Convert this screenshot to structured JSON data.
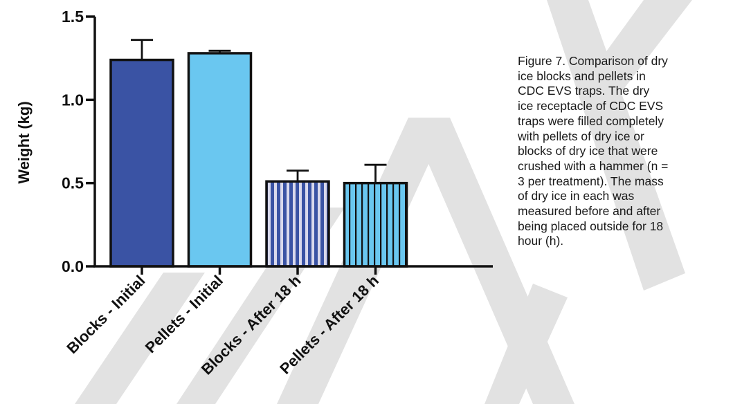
{
  "chart_data": {
    "type": "bar",
    "categories": [
      "Blocks - Initial",
      "Pellets - Initial",
      "Blocks - After 18 h",
      "Pellets - After 18 h"
    ],
    "values": [
      1.24,
      1.28,
      0.51,
      0.5
    ],
    "errors": [
      0.12,
      0.015,
      0.065,
      0.11
    ],
    "ylabel": "Weight (kg)",
    "xlabel": "",
    "ylim": [
      0,
      1.5
    ],
    "yticks": [
      "0.0",
      "0.5",
      "1.0",
      "1.5"
    ],
    "grid": false,
    "bar_fills": [
      "solid",
      "solid",
      "striped",
      "striped"
    ],
    "colors": [
      "#3a53a4",
      "#6ac7f0",
      "#3a53a4",
      "#6ac7f0"
    ]
  },
  "caption": "Figure 7.  Comparison of dry\nice blocks and pellets in\nCDC EVS traps.  The dry\nice receptacle of CDC EVS\ntraps were filled completely\nwith pellets of dry ice or\nblocks of dry ice that were\ncrushed with a hammer (n =\n3 per treatment).  The mass\nof dry ice in each was\nmeasured before and after\nbeing placed outside for 18\nhour (h).",
  "watermark": "DRAFT"
}
